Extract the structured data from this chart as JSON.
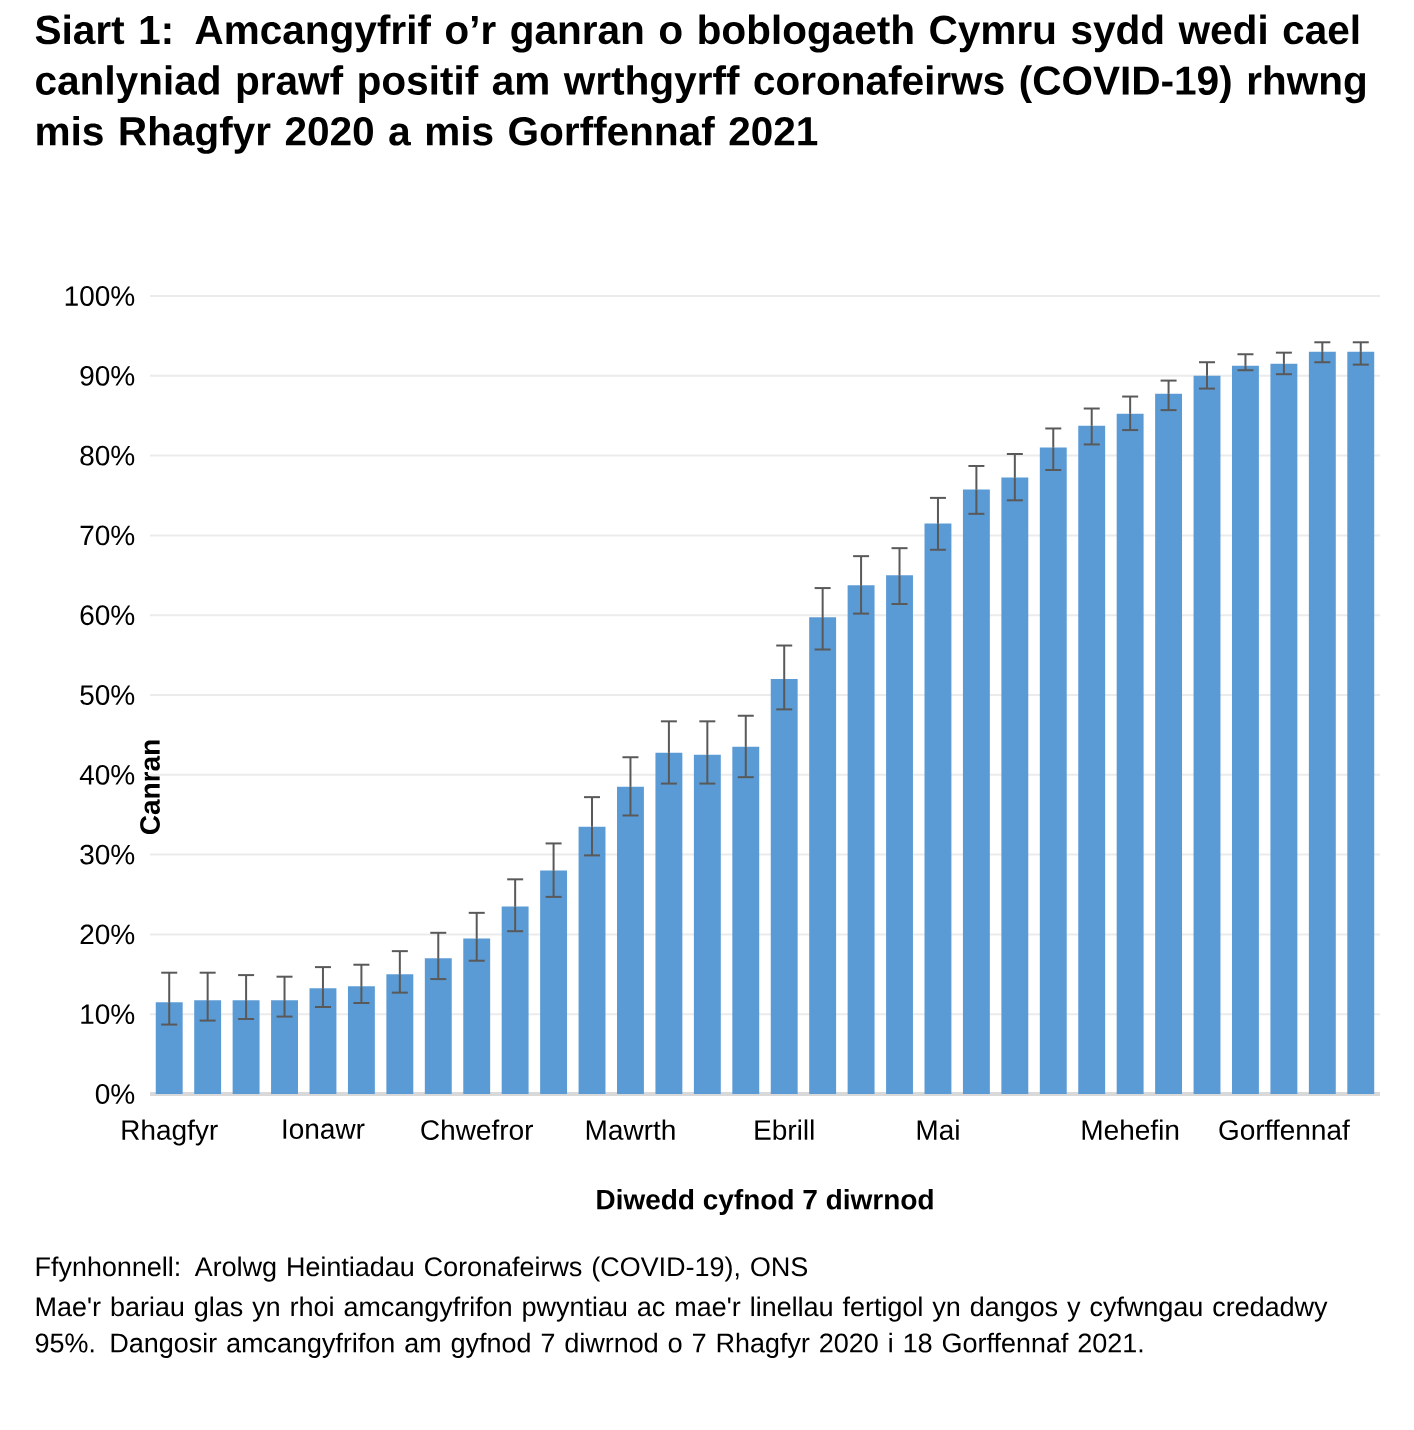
{
  "chart_data": {
    "type": "bar",
    "title": "Siart 1: Amcangyfrif o’r ganran o boblogaeth Cymru sydd wedi cael canlyniad prawf positif am wrthgyrff coronafeirws (COVID-19) rhwng mis Rhagfyr 2020 a mis Gorffennaf 2021",
    "xlabel": "Diwedd cyfnod 7 diwrnod",
    "ylabel": "Canran",
    "categories": [
      "Rhagfyr",
      null,
      null,
      null,
      "Ionawr",
      null,
      null,
      null,
      "Chwefror",
      null,
      null,
      null,
      "Mawrth",
      null,
      null,
      null,
      "Ebrill",
      null,
      null,
      null,
      "Mai",
      null,
      null,
      null,
      null,
      "Mehefin",
      null,
      null,
      null,
      "Gorffennaf",
      null,
      null
    ],
    "values": [
      11.5,
      11.75,
      11.75,
      11.75,
      13.25,
      13.5,
      15,
      17,
      19.5,
      23.5,
      28,
      33.5,
      38.5,
      42.75,
      42.5,
      43.5,
      52,
      59.75,
      63.75,
      65,
      71.5,
      75.75,
      77.25,
      81,
      83.75,
      85.25,
      87.75,
      90,
      91.25,
      91.5,
      93,
      93
    ],
    "errors": [
      [
        8.7,
        15.2
      ],
      [
        9.2,
        15.2
      ],
      [
        9.4,
        14.9
      ],
      [
        9.7,
        14.7
      ],
      [
        10.9,
        15.9
      ],
      [
        11.4,
        16.2
      ],
      [
        12.7,
        17.9
      ],
      [
        14.4,
        20.2
      ],
      [
        16.7,
        22.7
      ],
      [
        20.4,
        26.9
      ],
      [
        24.7,
        31.4
      ],
      [
        29.9,
        37.2
      ],
      [
        34.9,
        42.2
      ],
      [
        38.9,
        46.7
      ],
      [
        38.9,
        46.7
      ],
      [
        39.7,
        47.4
      ],
      [
        48.2,
        56.2
      ],
      [
        55.7,
        63.4
      ],
      [
        60.2,
        67.4
      ],
      [
        61.4,
        68.4
      ],
      [
        68.2,
        74.7
      ],
      [
        72.7,
        78.7
      ],
      [
        74.4,
        80.2
      ],
      [
        78.2,
        83.4
      ],
      [
        81.4,
        85.9
      ],
      [
        83.2,
        87.4
      ],
      [
        85.7,
        89.4
      ],
      [
        88.4,
        91.7
      ],
      [
        90.7,
        92.7
      ],
      [
        90.2,
        92.9
      ],
      [
        91.7,
        94.2
      ],
      [
        91.4,
        94.2
      ]
    ],
    "color": "#5b9bd5",
    "ylim": [
      0,
      100
    ],
    "yticks": [
      {
        "value": 0,
        "label": "0%"
      },
      {
        "value": 10,
        "label": "10%"
      },
      {
        "value": 20,
        "label": "20%"
      },
      {
        "value": 30,
        "label": "30%"
      },
      {
        "value": 40,
        "label": "40%"
      },
      {
        "value": 50,
        "label": "50%"
      },
      {
        "value": 60,
        "label": "60%"
      },
      {
        "value": 70,
        "label": "70%"
      },
      {
        "value": 80,
        "label": "80%"
      },
      {
        "value": 90,
        "label": "90%"
      },
      {
        "value": 100,
        "label": "100%"
      }
    ],
    "grid": "y",
    "annotations": [
      "Ffynhonnell: Arolwg Heintiadau Coronafeirws (COVID-19), ONS",
      "Mae'r bariau glas yn rhoi amcangyfrifon pwyntiau ac mae'r linellau fertigol yn dangos y cyfwngau credadwy 95%. Dangosir amcangyfrifon am gyfnod 7 diwrnod o 7 Rhagfyr 2020 i 18 Gorffennaf 2021."
    ]
  }
}
